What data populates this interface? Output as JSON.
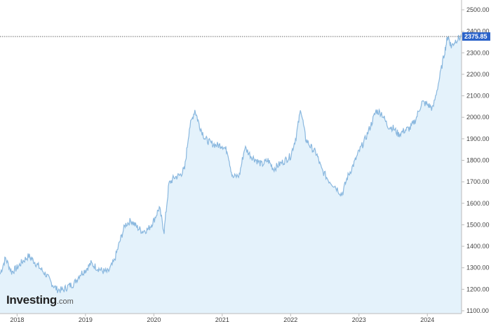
{
  "branding": {
    "name": "Investing",
    "suffix": ".com"
  },
  "chart_data": {
    "type": "area",
    "title": "",
    "xlabel": "",
    "ylabel": "",
    "ylim": [
      1100,
      2500
    ],
    "xlim": [
      2017.75,
      2024.5
    ],
    "y_ticks": [
      "1100.00",
      "1200.00",
      "1300.00",
      "1400.00",
      "1500.00",
      "1600.00",
      "1700.00",
      "1800.00",
      "1900.00",
      "2000.00",
      "2100.00",
      "2200.00",
      "2300.00",
      "2400.00",
      "2500.00"
    ],
    "x_ticks": [
      "2018",
      "2019",
      "2020",
      "2021",
      "2022",
      "2023",
      "2024"
    ],
    "last_value": "2375.85",
    "grid": false,
    "legend": "none",
    "colors": {
      "line": "#8ab8df",
      "fill": "#e4f2fb",
      "last_badge": "#2a62c9",
      "axis": "#bbbbbb"
    },
    "series": [
      {
        "x": [
          2017.75,
          2017.83,
          2017.92,
          2018.0,
          2018.08,
          2018.17,
          2018.25,
          2018.33,
          2018.42,
          2018.5,
          2018.58,
          2018.67,
          2018.75,
          2018.83,
          2018.92,
          2019.0,
          2019.08,
          2019.17,
          2019.25,
          2019.33,
          2019.42,
          2019.5,
          2019.58,
          2019.67,
          2019.75,
          2019.83,
          2019.92,
          2020.0,
          2020.08,
          2020.15,
          2020.22,
          2020.3,
          2020.38,
          2020.45,
          2020.52,
          2020.6,
          2020.67,
          2020.75,
          2020.83,
          2020.92,
          2021.0,
          2021.08,
          2021.15,
          2021.25,
          2021.33,
          2021.42,
          2021.5,
          2021.58,
          2021.67,
          2021.75,
          2021.83,
          2021.92,
          2022.0,
          2022.08,
          2022.15,
          2022.22,
          2022.3,
          2022.38,
          2022.45,
          2022.55,
          2022.65,
          2022.75,
          2022.83,
          2022.92,
          2023.0,
          2023.08,
          2023.17,
          2023.25,
          2023.33,
          2023.42,
          2023.5,
          2023.58,
          2023.67,
          2023.75,
          2023.83,
          2023.92,
          2024.0,
          2024.08,
          2024.17,
          2024.25,
          2024.3,
          2024.35,
          2024.42,
          2024.5
        ],
        "values": [
          1270,
          1345,
          1280,
          1300,
          1330,
          1355,
          1330,
          1300,
          1270,
          1230,
          1200,
          1195,
          1215,
          1225,
          1270,
          1290,
          1320,
          1300,
          1285,
          1280,
          1330,
          1420,
          1500,
          1520,
          1490,
          1470,
          1480,
          1520,
          1580,
          1470,
          1690,
          1720,
          1730,
          1760,
          1950,
          2035,
          1960,
          1900,
          1880,
          1870,
          1870,
          1840,
          1720,
          1730,
          1860,
          1820,
          1800,
          1780,
          1800,
          1760,
          1780,
          1800,
          1820,
          1910,
          2040,
          1900,
          1860,
          1830,
          1760,
          1710,
          1680,
          1640,
          1720,
          1780,
          1840,
          1890,
          1960,
          2030,
          2020,
          1960,
          1950,
          1920,
          1940,
          1950,
          1990,
          2070,
          2060,
          2040,
          2170,
          2300,
          2380,
          2330,
          2360,
          2375.85
        ]
      }
    ]
  }
}
